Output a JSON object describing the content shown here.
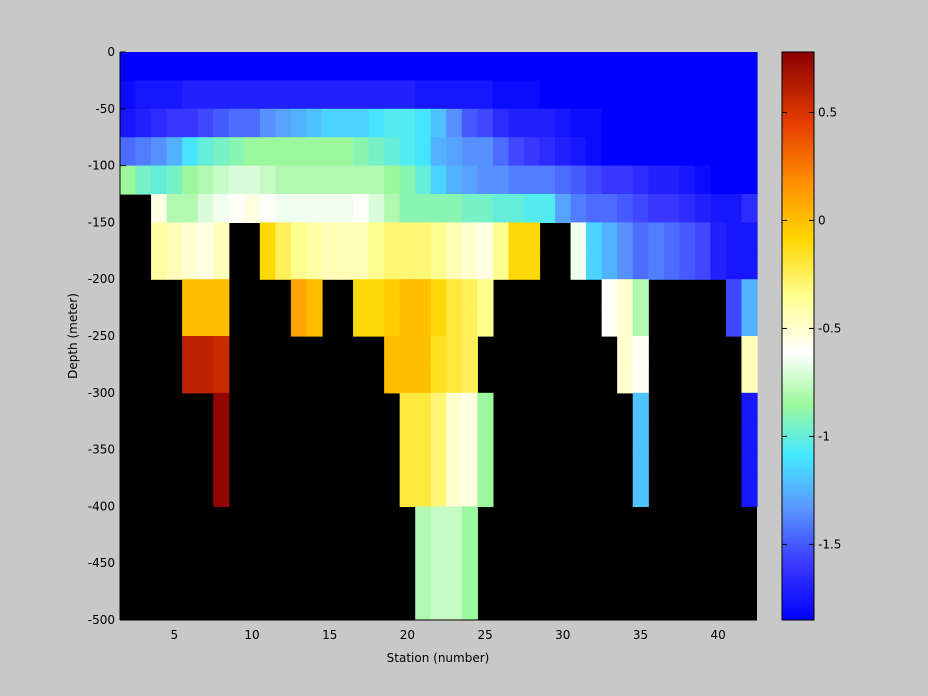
{
  "chart_data": {
    "type": "heatmap",
    "xlabel": "Station (number)",
    "ylabel": "Depth (meter)",
    "xlim": [
      1.5,
      42.5
    ],
    "ylim": [
      -500,
      0
    ],
    "x_ticks": [
      5,
      10,
      15,
      20,
      25,
      30,
      35,
      40
    ],
    "y_ticks": [
      0,
      -50,
      -100,
      -150,
      -200,
      -250,
      -300,
      -350,
      -400,
      -450,
      -500
    ],
    "colorbar": {
      "range": [
        -1.85,
        0.78
      ],
      "ticks": [
        0.5,
        0,
        -0.5,
        -1,
        -1.5
      ],
      "colormap": "jet-like with white near -0.5"
    },
    "no_data_color": "#000000",
    "depth_layers": [
      {
        "label": "0 to -25",
        "values": [
          -1.85,
          -1.85,
          -1.85,
          -1.85,
          -1.85,
          -1.85,
          -1.85,
          -1.85,
          -1.85,
          -1.85,
          -1.85,
          -1.85,
          -1.85,
          -1.85,
          -1.85,
          -1.85,
          -1.85,
          -1.85,
          -1.85,
          -1.85,
          -1.85,
          -1.85,
          -1.85,
          -1.85,
          -1.85,
          -1.85,
          -1.85,
          -1.85,
          -1.85,
          -1.85,
          -1.85,
          -1.85,
          -1.85,
          -1.85,
          -1.85,
          -1.85,
          -1.85,
          -1.85,
          -1.85,
          -1.85,
          -1.85
        ]
      },
      {
        "label": "-25 to -50",
        "values": [
          -1.8,
          -1.75,
          -1.75,
          -1.75,
          -1.7,
          -1.7,
          -1.7,
          -1.7,
          -1.7,
          -1.7,
          -1.7,
          -1.7,
          -1.7,
          -1.7,
          -1.7,
          -1.7,
          -1.7,
          -1.7,
          -1.7,
          -1.75,
          -1.75,
          -1.75,
          -1.75,
          -1.75,
          -1.8,
          -1.8,
          -1.8,
          -1.85,
          -1.85,
          -1.85,
          -1.85,
          -1.85,
          -1.85,
          -1.85,
          -1.85,
          -1.85,
          -1.85,
          -1.85,
          -1.85,
          -1.85,
          -1.85
        ]
      },
      {
        "label": "-50 to -75",
        "values": [
          -1.75,
          -1.7,
          -1.65,
          -1.6,
          -1.6,
          -1.55,
          -1.5,
          -1.45,
          -1.45,
          -1.35,
          -1.3,
          -1.25,
          -1.2,
          -1.15,
          -1.15,
          -1.15,
          -1.1,
          -1.05,
          -1.05,
          -1.1,
          -1.2,
          -1.35,
          -1.5,
          -1.55,
          -1.65,
          -1.7,
          -1.7,
          -1.7,
          -1.75,
          -1.8,
          -1.8,
          -1.85,
          -1.85,
          -1.85,
          -1.85,
          -1.85,
          -1.85,
          -1.85,
          -1.85,
          -1.85,
          -1.85
        ]
      },
      {
        "label": "-75 to -100",
        "values": [
          -1.45,
          -1.4,
          -1.35,
          -1.25,
          -1.1,
          -1.0,
          -0.95,
          -0.9,
          -0.85,
          -0.85,
          -0.85,
          -0.85,
          -0.85,
          -0.85,
          -0.85,
          -0.9,
          -0.95,
          -1.0,
          -1.05,
          -1.1,
          -1.25,
          -1.3,
          -1.35,
          -1.35,
          -1.45,
          -1.55,
          -1.6,
          -1.65,
          -1.7,
          -1.75,
          -1.8,
          -1.85,
          -1.85,
          -1.85,
          -1.85,
          -1.85,
          -1.85,
          -1.85,
          -1.85,
          -1.85,
          -1.85
        ]
      },
      {
        "label": "-100 to -125",
        "values": [
          -0.85,
          -0.95,
          -1.0,
          -0.95,
          -0.85,
          -0.8,
          -0.75,
          -0.7,
          -0.7,
          -0.75,
          -0.8,
          -0.8,
          -0.8,
          -0.8,
          -0.8,
          -0.8,
          -0.8,
          -0.85,
          -0.9,
          -1.0,
          -1.15,
          -1.25,
          -1.3,
          -1.35,
          -1.35,
          -1.4,
          -1.4,
          -1.4,
          -1.45,
          -1.5,
          -1.55,
          -1.6,
          -1.6,
          -1.65,
          -1.7,
          -1.7,
          -1.75,
          -1.8,
          -1.85,
          -1.85,
          -1.85
        ]
      },
      {
        "label": "-125 to -150",
        "values": [
          null,
          null,
          -0.55,
          -0.8,
          -0.8,
          -0.7,
          -0.65,
          -0.6,
          -0.55,
          -0.6,
          -0.65,
          -0.65,
          -0.65,
          -0.65,
          -0.65,
          -0.6,
          -0.7,
          -0.8,
          -0.9,
          -0.9,
          -0.9,
          -0.9,
          -0.95,
          -0.95,
          -1.0,
          -1.0,
          -1.05,
          -1.05,
          -1.3,
          -1.4,
          -1.45,
          -1.45,
          -1.5,
          -1.55,
          -1.6,
          -1.6,
          -1.65,
          -1.7,
          -1.75,
          -1.75,
          -1.65
        ]
      },
      {
        "label": "-150 to -175",
        "values": [
          null,
          null,
          -0.4,
          -0.45,
          -0.5,
          -0.55,
          -0.45,
          null,
          null,
          -0.1,
          -0.25,
          -0.35,
          -0.4,
          -0.45,
          -0.45,
          -0.45,
          -0.35,
          -0.3,
          -0.3,
          -0.3,
          -0.35,
          -0.45,
          -0.5,
          -0.55,
          -0.35,
          -0.1,
          -0.1,
          null,
          null,
          -0.65,
          -1.15,
          -1.25,
          -1.35,
          -1.45,
          -1.4,
          -1.45,
          -1.5,
          -1.55,
          -1.7,
          -1.75,
          -1.75
        ]
      },
      {
        "label": "-175 to -200",
        "values": [
          null,
          null,
          -0.4,
          -0.45,
          -0.5,
          -0.55,
          -0.45,
          null,
          null,
          -0.1,
          -0.25,
          -0.35,
          -0.4,
          -0.45,
          -0.45,
          -0.45,
          -0.35,
          -0.3,
          -0.3,
          -0.3,
          -0.35,
          -0.45,
          -0.5,
          -0.55,
          -0.35,
          -0.1,
          -0.1,
          null,
          null,
          -0.65,
          -1.15,
          -1.25,
          -1.35,
          -1.45,
          -1.4,
          -1.45,
          -1.5,
          -1.55,
          -1.7,
          -1.75,
          -1.75
        ]
      },
      {
        "label": "-200 to -225",
        "values": [
          null,
          null,
          null,
          null,
          0.0,
          0.0,
          0.0,
          null,
          null,
          null,
          null,
          0.1,
          0.0,
          null,
          null,
          -0.1,
          -0.1,
          -0.05,
          0.0,
          0.0,
          -0.1,
          -0.2,
          -0.25,
          -0.35,
          null,
          null,
          null,
          null,
          null,
          null,
          null,
          -0.6,
          -0.5,
          -0.8,
          null,
          null,
          null,
          null,
          null,
          -1.55,
          -1.25
        ]
      },
      {
        "label": "-225 to -250",
        "values": [
          null,
          null,
          null,
          null,
          0.0,
          0.0,
          0.0,
          null,
          null,
          null,
          null,
          0.1,
          0.0,
          null,
          null,
          -0.1,
          -0.1,
          -0.05,
          0.0,
          0.0,
          -0.1,
          -0.2,
          -0.25,
          -0.35,
          null,
          null,
          null,
          null,
          null,
          null,
          null,
          -0.6,
          -0.5,
          -0.8,
          null,
          null,
          null,
          null,
          null,
          -1.55,
          -1.25
        ]
      },
      {
        "label": "-250 to -275",
        "values": [
          null,
          null,
          null,
          null,
          0.6,
          0.6,
          0.55,
          null,
          null,
          null,
          null,
          null,
          null,
          null,
          null,
          null,
          null,
          0.0,
          0.0,
          0.0,
          -0.15,
          -0.2,
          -0.25,
          null,
          null,
          null,
          null,
          null,
          null,
          null,
          null,
          null,
          -0.5,
          -0.6,
          null,
          null,
          null,
          null,
          null,
          null,
          -0.45
        ]
      },
      {
        "label": "-275 to -300",
        "values": [
          null,
          null,
          null,
          null,
          0.6,
          0.6,
          0.55,
          null,
          null,
          null,
          null,
          null,
          null,
          null,
          null,
          null,
          null,
          0.0,
          0.0,
          0.0,
          -0.15,
          -0.2,
          -0.25,
          null,
          null,
          null,
          null,
          null,
          null,
          null,
          null,
          null,
          -0.5,
          -0.6,
          null,
          null,
          null,
          null,
          null,
          null,
          -0.45
        ]
      },
      {
        "label": "-300 to -325",
        "values": [
          null,
          null,
          null,
          null,
          null,
          null,
          0.75,
          null,
          null,
          null,
          null,
          null,
          null,
          null,
          null,
          null,
          null,
          null,
          -0.2,
          -0.2,
          -0.3,
          -0.5,
          -0.55,
          -0.85,
          null,
          null,
          null,
          null,
          null,
          null,
          null,
          null,
          null,
          -1.2,
          null,
          null,
          null,
          null,
          null,
          null,
          -1.75
        ]
      },
      {
        "label": "-325 to -350",
        "values": [
          null,
          null,
          null,
          null,
          null,
          null,
          0.75,
          null,
          null,
          null,
          null,
          null,
          null,
          null,
          null,
          null,
          null,
          null,
          -0.2,
          -0.2,
          -0.3,
          -0.5,
          -0.55,
          -0.85,
          null,
          null,
          null,
          null,
          null,
          null,
          null,
          null,
          null,
          -1.2,
          null,
          null,
          null,
          null,
          null,
          null,
          -1.75
        ]
      },
      {
        "label": "-350 to -375",
        "values": [
          null,
          null,
          null,
          null,
          null,
          null,
          0.75,
          null,
          null,
          null,
          null,
          null,
          null,
          null,
          null,
          null,
          null,
          null,
          -0.2,
          -0.2,
          -0.3,
          -0.5,
          -0.55,
          -0.85,
          null,
          null,
          null,
          null,
          null,
          null,
          null,
          null,
          null,
          -1.2,
          null,
          null,
          null,
          null,
          null,
          null,
          -1.75
        ]
      },
      {
        "label": "-375 to -400",
        "values": [
          null,
          null,
          null,
          null,
          null,
          null,
          0.75,
          null,
          null,
          null,
          null,
          null,
          null,
          null,
          null,
          null,
          null,
          null,
          -0.2,
          -0.2,
          -0.3,
          -0.5,
          -0.55,
          -0.85,
          null,
          null,
          null,
          null,
          null,
          null,
          null,
          null,
          null,
          -1.2,
          null,
          null,
          null,
          null,
          null,
          null,
          -1.75
        ]
      },
      {
        "label": "-400 to -500",
        "values": [
          null,
          null,
          null,
          null,
          null,
          null,
          null,
          null,
          null,
          null,
          null,
          null,
          null,
          null,
          null,
          null,
          null,
          null,
          null,
          -0.8,
          -0.75,
          -0.75,
          -0.85,
          null,
          null,
          null,
          null,
          null,
          null,
          null,
          null,
          null,
          null,
          null,
          null,
          null,
          null,
          null,
          null,
          null,
          null
        ]
      }
    ],
    "stations": [
      2,
      3,
      4,
      5,
      6,
      7,
      8,
      9,
      10,
      11,
      12,
      13,
      14,
      15,
      16,
      17,
      18,
      19,
      20,
      21,
      22,
      23,
      24,
      25,
      26,
      27,
      28,
      29,
      30,
      31,
      32,
      33,
      34,
      35,
      36,
      37,
      38,
      39,
      40,
      41,
      42
    ],
    "layer_depths": [
      [
        0,
        -25
      ],
      [
        -25,
        -50
      ],
      [
        -50,
        -75
      ],
      [
        -75,
        -100
      ],
      [
        -100,
        -125
      ],
      [
        -125,
        -150
      ],
      [
        -150,
        -175
      ],
      [
        -175,
        -200
      ],
      [
        -200,
        -225
      ],
      [
        -225,
        -250
      ],
      [
        -250,
        -275
      ],
      [
        -275,
        -300
      ],
      [
        -300,
        -325
      ],
      [
        -325,
        -350
      ],
      [
        -350,
        -375
      ],
      [
        -375,
        -400
      ],
      [
        -400,
        -500
      ]
    ]
  }
}
